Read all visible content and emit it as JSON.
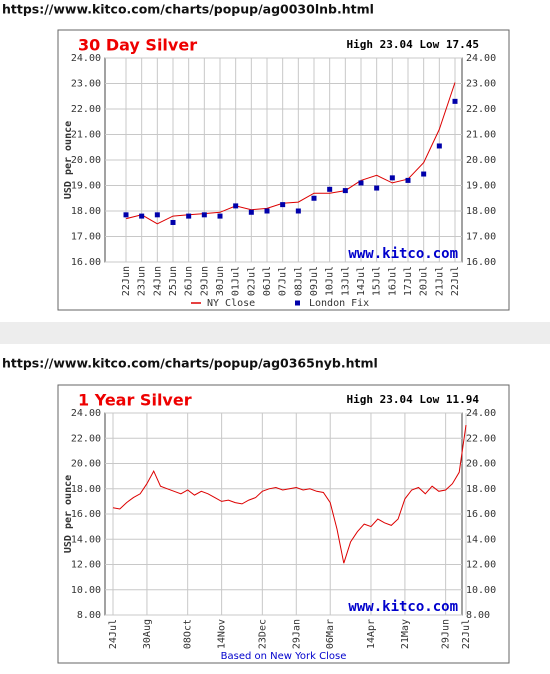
{
  "urls": [
    "https://www.kitco.com/charts/popup/ag0030lnb.html",
    "https://www.kitco.com/charts/popup/ag0365nyb.html"
  ],
  "chart_data": [
    {
      "type": "line",
      "title": "30 Day Silver",
      "header": "High 23.04 Low 17.45",
      "watermark": "www.kitco.com",
      "y_label": "USD per ounce",
      "categories": [
        "22Jun",
        "23Jun",
        "24Jun",
        "25Jun",
        "26Jun",
        "29Jun",
        "30Jun",
        "01Jul",
        "02Jul",
        "06Jul",
        "07Jul",
        "08Jul",
        "09Jul",
        "10Jul",
        "13Jul",
        "14Jul",
        "15Jul",
        "16Jul",
        "17Jul",
        "20Jul",
        "21Jul",
        "22Jul"
      ],
      "series": [
        {
          "name": "NY Close",
          "color": "#dd0000",
          "mode": "line",
          "values": [
            17.7,
            17.85,
            17.5,
            17.8,
            17.85,
            17.9,
            17.95,
            18.2,
            18.05,
            18.1,
            18.3,
            18.35,
            18.7,
            18.7,
            18.8,
            19.2,
            19.4,
            19.1,
            19.25,
            19.9,
            21.2,
            23.04
          ]
        },
        {
          "name": "London Fix",
          "color": "#0000aa",
          "mode": "markers",
          "values": [
            17.85,
            17.8,
            17.85,
            17.55,
            17.8,
            17.85,
            17.8,
            18.2,
            17.95,
            18.0,
            18.25,
            18.0,
            18.5,
            18.85,
            18.8,
            19.1,
            18.9,
            19.3,
            19.2,
            19.45,
            20.55,
            22.3
          ]
        }
      ],
      "ylim": [
        16,
        24
      ],
      "yticks": [
        {
          "value": 16,
          "label": "16.00"
        },
        {
          "value": 17,
          "label": "17.00"
        },
        {
          "value": 18,
          "label": "18.00"
        },
        {
          "value": 19,
          "label": "19.00"
        },
        {
          "value": 20,
          "label": "20.00"
        },
        {
          "value": 21,
          "label": "21.00"
        },
        {
          "value": 22,
          "label": "22.00"
        },
        {
          "value": 23,
          "label": "23.00"
        },
        {
          "value": 24,
          "label": "24.00"
        }
      ],
      "grid": true,
      "legend": "bottom"
    },
    {
      "type": "line",
      "title": "1 Year Silver",
      "header": "High 23.04 Low 11.94",
      "watermark": "www.kitco.com",
      "y_label": "USD per ounce",
      "note": "Based on New York Close",
      "categories": [
        "24Jul",
        null,
        null,
        null,
        null,
        "30Aug",
        null,
        null,
        null,
        null,
        null,
        "08Oct",
        null,
        null,
        null,
        null,
        "14Nov",
        null,
        null,
        null,
        null,
        null,
        "23Dec",
        null,
        null,
        null,
        null,
        "29Jan",
        null,
        null,
        null,
        null,
        "06Mar",
        null,
        null,
        null,
        null,
        null,
        "14Apr",
        null,
        null,
        null,
        null,
        "21May",
        null,
        null,
        null,
        null,
        null,
        "29Jun",
        null,
        null,
        "22Jul"
      ],
      "series": [
        {
          "color": "#dd0000",
          "mode": "line",
          "values": [
            16.5,
            16.4,
            16.9,
            17.3,
            17.6,
            18.4,
            19.4,
            18.2,
            18.0,
            17.8,
            17.6,
            17.9,
            17.5,
            17.8,
            17.6,
            17.3,
            17.0,
            17.1,
            16.9,
            16.8,
            17.1,
            17.3,
            17.8,
            18.0,
            18.1,
            17.9,
            18.0,
            18.1,
            17.9,
            18.0,
            17.8,
            17.7,
            16.9,
            14.8,
            12.1,
            13.8,
            14.6,
            15.2,
            15.0,
            15.6,
            15.3,
            15.1,
            15.6,
            17.2,
            17.9,
            18.1,
            17.6,
            18.2,
            17.8,
            17.9,
            18.4,
            19.3,
            23.04
          ]
        }
      ],
      "ylim": [
        8,
        24
      ],
      "yticks": [
        {
          "value": 8,
          "label": "8.00"
        },
        {
          "value": 10,
          "label": "10.00"
        },
        {
          "value": 12,
          "label": "12.00"
        },
        {
          "value": 14,
          "label": "14.00"
        },
        {
          "value": 16,
          "label": "16.00"
        },
        {
          "value": 18,
          "label": "18.00"
        },
        {
          "value": 20,
          "label": "20.00"
        },
        {
          "value": 22,
          "label": "22.00"
        },
        {
          "value": 24,
          "label": "24.00"
        }
      ],
      "grid": true
    }
  ]
}
